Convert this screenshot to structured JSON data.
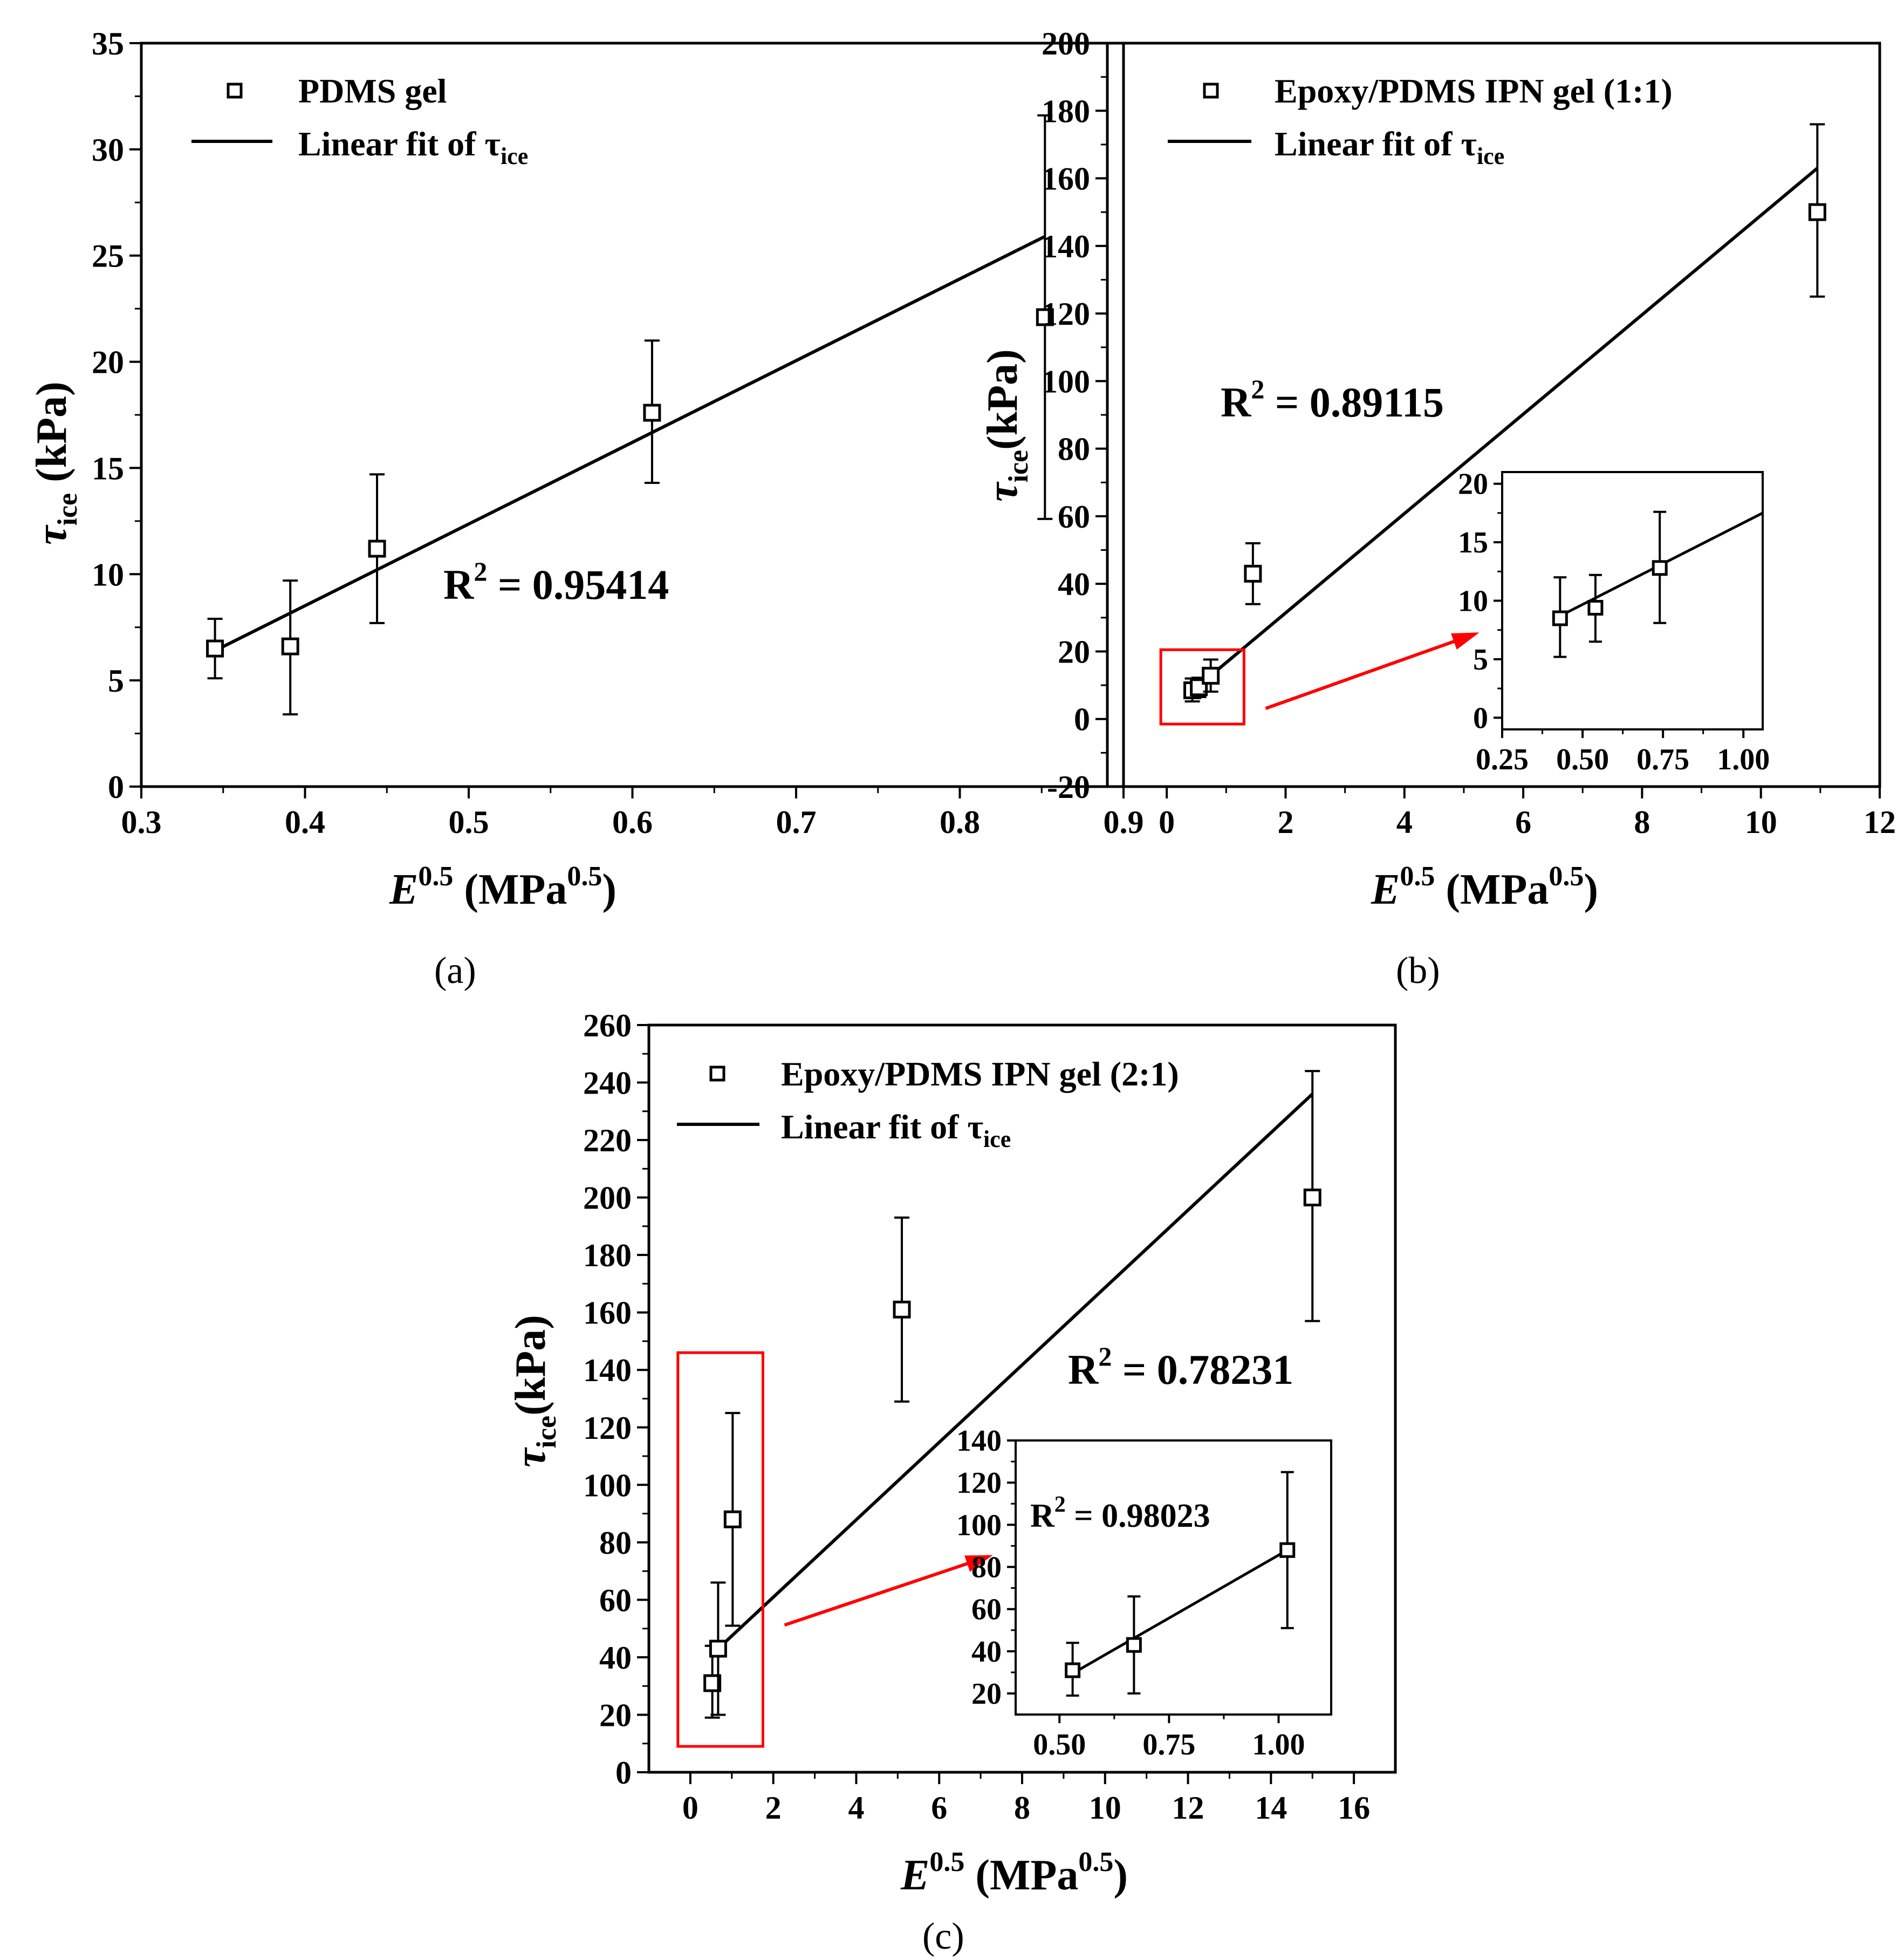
{
  "colors": {
    "axis": "#000000",
    "marker": "#000000",
    "fit_line": "#000000",
    "highlight": "#ff0000"
  },
  "chart_data": [
    {
      "id": "a",
      "type": "scatter",
      "caption": "(a)",
      "legend": {
        "series_label": "PDMS gel",
        "fit_label": "Linear fit of ",
        "fit_symbol": "τ",
        "fit_sub": "ice",
        "position": "top-left"
      },
      "xlabel": {
        "var": "E",
        "exp": "0.5",
        "unit": "(MPa",
        "unit_exp": "0.5",
        "close": ")"
      },
      "ylabel": {
        "var": "τ",
        "sub": "ice",
        "unit": " (kPa)"
      },
      "xlim": [
        0.3,
        0.9
      ],
      "ylim": [
        0,
        35
      ],
      "xticks": [
        0.3,
        0.4,
        0.5,
        0.6,
        0.7,
        0.8,
        0.9
      ],
      "xtick_labels": [
        "0.3",
        "0.4",
        "0.5",
        "0.6",
        "0.7",
        "0.8",
        "0.9"
      ],
      "yticks": [
        0,
        5,
        10,
        15,
        20,
        25,
        30,
        35
      ],
      "ytick_labels": [
        "0",
        "5",
        "10",
        "15",
        "20",
        "25",
        "30",
        "35"
      ],
      "points": [
        {
          "x": 0.345,
          "y": 6.5,
          "err_low": 5.1,
          "err_high": 7.9
        },
        {
          "x": 0.391,
          "y": 6.6,
          "err_low": 3.4,
          "err_high": 9.7
        },
        {
          "x": 0.444,
          "y": 11.2,
          "err_low": 7.7,
          "err_high": 14.7
        },
        {
          "x": 0.612,
          "y": 17.6,
          "err_low": 14.3,
          "err_high": 21.0
        },
        {
          "x": 0.852,
          "y": 22.1,
          "err_low": 12.6,
          "err_high": 31.6
        }
      ],
      "fit": {
        "x": [
          0.345,
          0.852
        ],
        "y": [
          6.4,
          25.9
        ]
      },
      "r2": {
        "prefix": "R",
        "sup": "2",
        "value": " = 0.95414"
      }
    },
    {
      "id": "b",
      "type": "scatter",
      "caption": "(b)",
      "legend": {
        "series_label": "Epoxy/PDMS IPN gel (1:1)",
        "fit_label": "Linear fit of ",
        "fit_symbol": "τ",
        "fit_sub": "ice",
        "position": "top-left"
      },
      "xlabel": {
        "var": "E",
        "exp": "0.5",
        "unit": "(MPa",
        "unit_exp": "0.5",
        "close": ")"
      },
      "ylabel": {
        "var": "τ",
        "sub": "ice",
        "unit": "(kPa)"
      },
      "xlim": [
        -1,
        12
      ],
      "ylim": [
        -20,
        200
      ],
      "xticks": [
        0,
        2,
        4,
        6,
        8,
        10,
        12
      ],
      "xtick_labels": [
        "0",
        "2",
        "4",
        "6",
        "8",
        "10",
        "12"
      ],
      "yticks": [
        -20,
        0,
        20,
        40,
        60,
        80,
        100,
        120,
        140,
        160,
        180,
        200
      ],
      "ytick_labels": [
        "-20",
        "0",
        "20",
        "40",
        "60",
        "80",
        "100",
        "120",
        "140",
        "160",
        "180",
        "200"
      ],
      "points": [
        {
          "x": 0.43,
          "y": 8.5,
          "err_low": 5.2,
          "err_high": 12.0
        },
        {
          "x": 0.54,
          "y": 9.4,
          "err_low": 6.5,
          "err_high": 12.2
        },
        {
          "x": 0.74,
          "y": 12.8,
          "err_low": 8.1,
          "err_high": 17.6
        },
        {
          "x": 1.45,
          "y": 43.0,
          "err_low": 34.0,
          "err_high": 52.0
        },
        {
          "x": 10.95,
          "y": 150.0,
          "err_low": 125.0,
          "err_high": 176.0
        }
      ],
      "fit": {
        "x": [
          0.43,
          10.95
        ],
        "y": [
          8.3,
          163.0
        ]
      },
      "r2": {
        "prefix": "R",
        "sup": "2",
        "value": " = 0.89115"
      },
      "highlight_box": {
        "x0": -0.1,
        "x1": 1.3,
        "y0": -1.5,
        "y1": 20.5
      },
      "inset": {
        "xlim": [
          0.25,
          1.06
        ],
        "ylim": [
          -1,
          21
        ],
        "xticks": [
          0.25,
          0.5,
          0.75,
          1.0
        ],
        "xtick_labels": [
          "0.25",
          "0.50",
          "0.75",
          "1.00"
        ],
        "yticks": [
          0,
          5,
          10,
          15,
          20
        ],
        "ytick_labels": [
          "0",
          "5",
          "10",
          "15",
          "20"
        ],
        "points": [
          {
            "x": 0.43,
            "y": 8.5,
            "err_low": 5.2,
            "err_high": 12.0
          },
          {
            "x": 0.54,
            "y": 9.4,
            "err_low": 6.5,
            "err_high": 12.2
          },
          {
            "x": 0.74,
            "y": 12.8,
            "err_low": 8.1,
            "err_high": 17.6
          }
        ],
        "fit": {
          "x": [
            0.43,
            1.06
          ],
          "y": [
            8.7,
            17.5
          ]
        }
      }
    },
    {
      "id": "c",
      "type": "scatter",
      "caption": "(c)",
      "legend": {
        "series_label": "Epoxy/PDMS IPN gel (2:1)",
        "fit_label": "Linear fit of ",
        "fit_symbol": "τ",
        "fit_sub": "ice",
        "position": "top-left"
      },
      "xlabel": {
        "var": "E",
        "exp": "0.5",
        "unit": "(MPa",
        "unit_exp": "0.5",
        "close": ")"
      },
      "ylabel": {
        "var": "τ",
        "sub": "ice",
        "unit": "(kPa)"
      },
      "xlim": [
        -1,
        17
      ],
      "ylim": [
        0,
        260
      ],
      "xticks": [
        0,
        2,
        4,
        6,
        8,
        10,
        12,
        14,
        16
      ],
      "xtick_labels": [
        "0",
        "2",
        "4",
        "6",
        "8",
        "10",
        "12",
        "14",
        "16"
      ],
      "yticks": [
        0,
        20,
        40,
        60,
        80,
        100,
        120,
        140,
        160,
        180,
        200,
        220,
        240,
        260
      ],
      "ytick_labels": [
        "0",
        "20",
        "40",
        "60",
        "80",
        "100",
        "120",
        "140",
        "160",
        "180",
        "200",
        "220",
        "240",
        "260"
      ],
      "points": [
        {
          "x": 0.53,
          "y": 31.0,
          "err_low": 19.0,
          "err_high": 44.0
        },
        {
          "x": 0.67,
          "y": 43.0,
          "err_low": 20.0,
          "err_high": 66.0
        },
        {
          "x": 1.02,
          "y": 88.0,
          "err_low": 51.0,
          "err_high": 125.0
        },
        {
          "x": 5.1,
          "y": 161.0,
          "err_low": 129.0,
          "err_high": 193.0
        },
        {
          "x": 15.0,
          "y": 200.0,
          "err_low": 157.0,
          "err_high": 244.0
        }
      ],
      "fit": {
        "x": [
          0.67,
          15.0
        ],
        "y": [
          43.0,
          236.0
        ]
      },
      "r2": {
        "prefix": "R",
        "sup": "2",
        "value": " = 0.78231"
      },
      "highlight_box": {
        "x0": -0.3,
        "x1": 1.75,
        "y0": 9.0,
        "y1": 146.0
      },
      "inset": {
        "xlim": [
          0.4,
          1.12
        ],
        "ylim": [
          10,
          140
        ],
        "xticks": [
          0.5,
          0.75,
          1.0
        ],
        "xtick_labels": [
          "0.50",
          "0.75",
          "1.00"
        ],
        "yticks": [
          20,
          40,
          60,
          80,
          100,
          120,
          140
        ],
        "ytick_labels": [
          "20",
          "40",
          "60",
          "80",
          "100",
          "120",
          "140"
        ],
        "points": [
          {
            "x": 0.53,
            "y": 31.0,
            "err_low": 19.0,
            "err_high": 44.0
          },
          {
            "x": 0.67,
            "y": 43.0,
            "err_low": 20.0,
            "err_high": 66.0
          },
          {
            "x": 1.02,
            "y": 88.0,
            "err_low": 51.0,
            "err_high": 125.0
          }
        ],
        "fit": {
          "x": [
            0.53,
            1.02
          ],
          "y": [
            29.5,
            88.0
          ]
        },
        "r2": {
          "prefix": "R",
          "sup": "2",
          "value": " = 0.98023"
        }
      }
    }
  ]
}
